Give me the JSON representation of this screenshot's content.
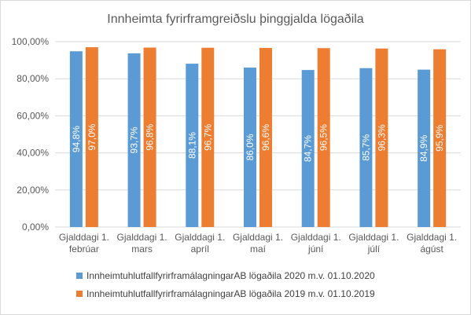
{
  "chart_data": {
    "type": "bar",
    "title": "Innheimta fyrirframgreiðslu þinggjalda lögaðila",
    "categories": [
      [
        "Gjalddagi 1.",
        "febrúar"
      ],
      [
        "Gjalddagi 1.",
        "mars"
      ],
      [
        "Gjalddagi 1.",
        "apríl"
      ],
      [
        "Gjalddagi 1.",
        "maí"
      ],
      [
        "Gjalddagi 1.",
        "júní"
      ],
      [
        "Gjalddagi 1.",
        "júlí"
      ],
      [
        "Gjalddagi 1.",
        "ágúst"
      ]
    ],
    "series": [
      {
        "name": "InnheimtuhlutfallfyrirframálagningarAB lögaðila 2020 m.v. 01.10.2020",
        "color": "#5b9bd5",
        "values": [
          94.8,
          93.7,
          88.1,
          86.0,
          84.7,
          85.7,
          84.9
        ],
        "labels": [
          "94,8%",
          "93,7%",
          "88,1%",
          "86,0%",
          "84,7%",
          "85,7%",
          "84,9%"
        ]
      },
      {
        "name": "InnheimtuhlutfallfyrirframálagningarAB lögaðila 2019 m.v. 01.10.2019",
        "color": "#ed7d31",
        "values": [
          97.0,
          96.8,
          96.7,
          96.6,
          96.5,
          96.3,
          95.9
        ],
        "labels": [
          "97,0%",
          "96,8%",
          "96,7%",
          "96,6%",
          "96,5%",
          "96,3%",
          "95,9%"
        ]
      }
    ],
    "ylim": [
      0,
      100
    ],
    "yticks": [
      "0,00%",
      "20,00%",
      "40,00%",
      "60,00%",
      "80,00%",
      "100,00%"
    ],
    "grid": true,
    "legend_position": "bottom"
  }
}
